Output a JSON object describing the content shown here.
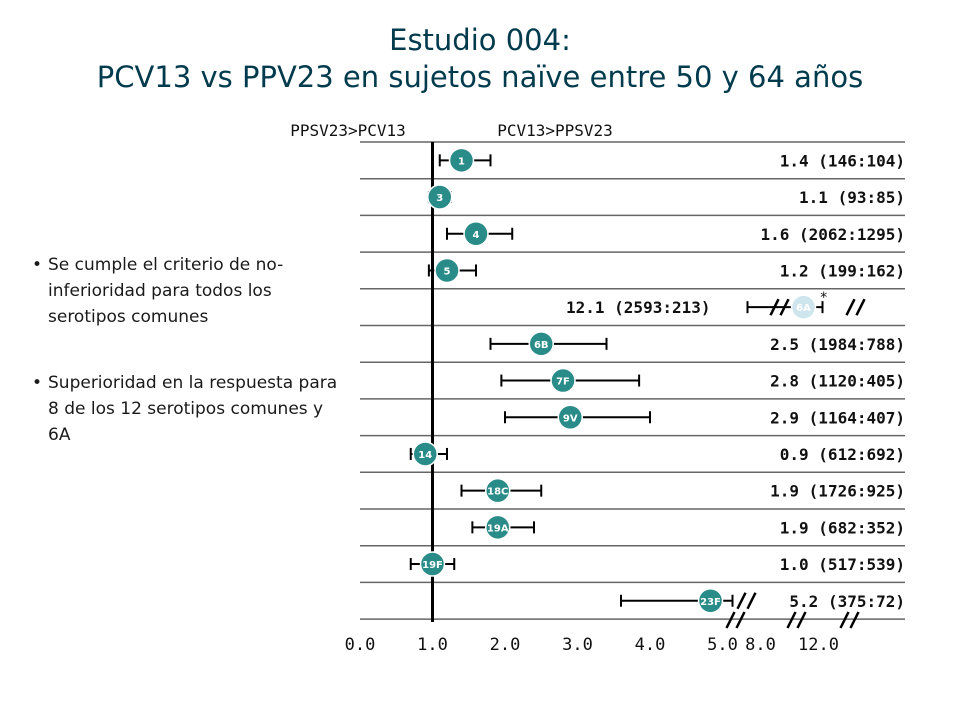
{
  "title": {
    "line1": "Estudio 004:",
    "line2": "PCV13 vs PPV23 en sujetos naïve entre 50 y 64 años"
  },
  "bullets": [
    "Se cumple el criterio de no-inferioridad para todos los serotipos comunes",
    "Superioridad en la respuesta para 8 de los 12 serotipos comunes y 6A"
  ],
  "colors": {
    "marker": "#2a8c88",
    "marker_light": "#cfe5ee",
    "row_line": "#666666",
    "axis": "#000000",
    "title": "#003a4d"
  },
  "chart_data": {
    "type": "scatter",
    "subtype": "forest-plot",
    "header_left": "PPSV23>PCV13",
    "header_right": "PCV13>PPSV23",
    "x_tick_labels": [
      "0.0",
      "1.0",
      "2.0",
      "3.0",
      "4.0",
      "5.0",
      "8.0",
      "12.0"
    ],
    "x_tick_values": [
      0,
      1,
      2,
      3,
      4,
      5,
      8,
      12
    ],
    "axis_break_after": 5.0,
    "reference_line": 1.0,
    "xlim": [
      0,
      12
    ],
    "rows": [
      {
        "serotype": "1",
        "ratio": 1.4,
        "ci": [
          1.1,
          1.8
        ],
        "label": "1.4 (146:104)"
      },
      {
        "serotype": "3",
        "ratio": 1.1,
        "ci": [
          0.95,
          1.25
        ],
        "label": "1.1 (93:85)"
      },
      {
        "serotype": "4",
        "ratio": 1.6,
        "ci": [
          1.2,
          2.1
        ],
        "label": "1.6 (2062:1295)"
      },
      {
        "serotype": "5",
        "ratio": 1.2,
        "ci": [
          0.95,
          1.6
        ],
        "label": "1.2 (199:162)"
      },
      {
        "serotype": "6A",
        "ratio": 12.1,
        "ci": [
          5.4,
          12.5
        ],
        "label": "12.1 (2593:213)",
        "marker": "*",
        "highlight": true
      },
      {
        "serotype": "6B",
        "ratio": 2.5,
        "ci": [
          1.8,
          3.4
        ],
        "label": "2.5 (1984:788)"
      },
      {
        "serotype": "7F",
        "ratio": 2.8,
        "ci": [
          1.95,
          3.85
        ],
        "label": "2.8 (1120:405)"
      },
      {
        "serotype": "9V",
        "ratio": 2.9,
        "ci": [
          2.0,
          4.0
        ],
        "label": "2.9 (1164:407)"
      },
      {
        "serotype": "14",
        "ratio": 0.9,
        "ci": [
          0.7,
          1.2
        ],
        "label": "0.9 (612:692)"
      },
      {
        "serotype": "18C",
        "ratio": 1.9,
        "ci": [
          1.4,
          2.5
        ],
        "label": "1.9 (1726:925)"
      },
      {
        "serotype": "19A",
        "ratio": 1.9,
        "ci": [
          1.55,
          2.4
        ],
        "label": "1.9 (682:352)"
      },
      {
        "serotype": "19F",
        "ratio": 1.0,
        "ci": [
          0.7,
          1.3
        ],
        "label": "1.0 (517:539)"
      },
      {
        "serotype": "23F",
        "ratio": 5.2,
        "ci": [
          3.6,
          5.4
        ],
        "label": "5.2 (375:72)"
      }
    ]
  }
}
